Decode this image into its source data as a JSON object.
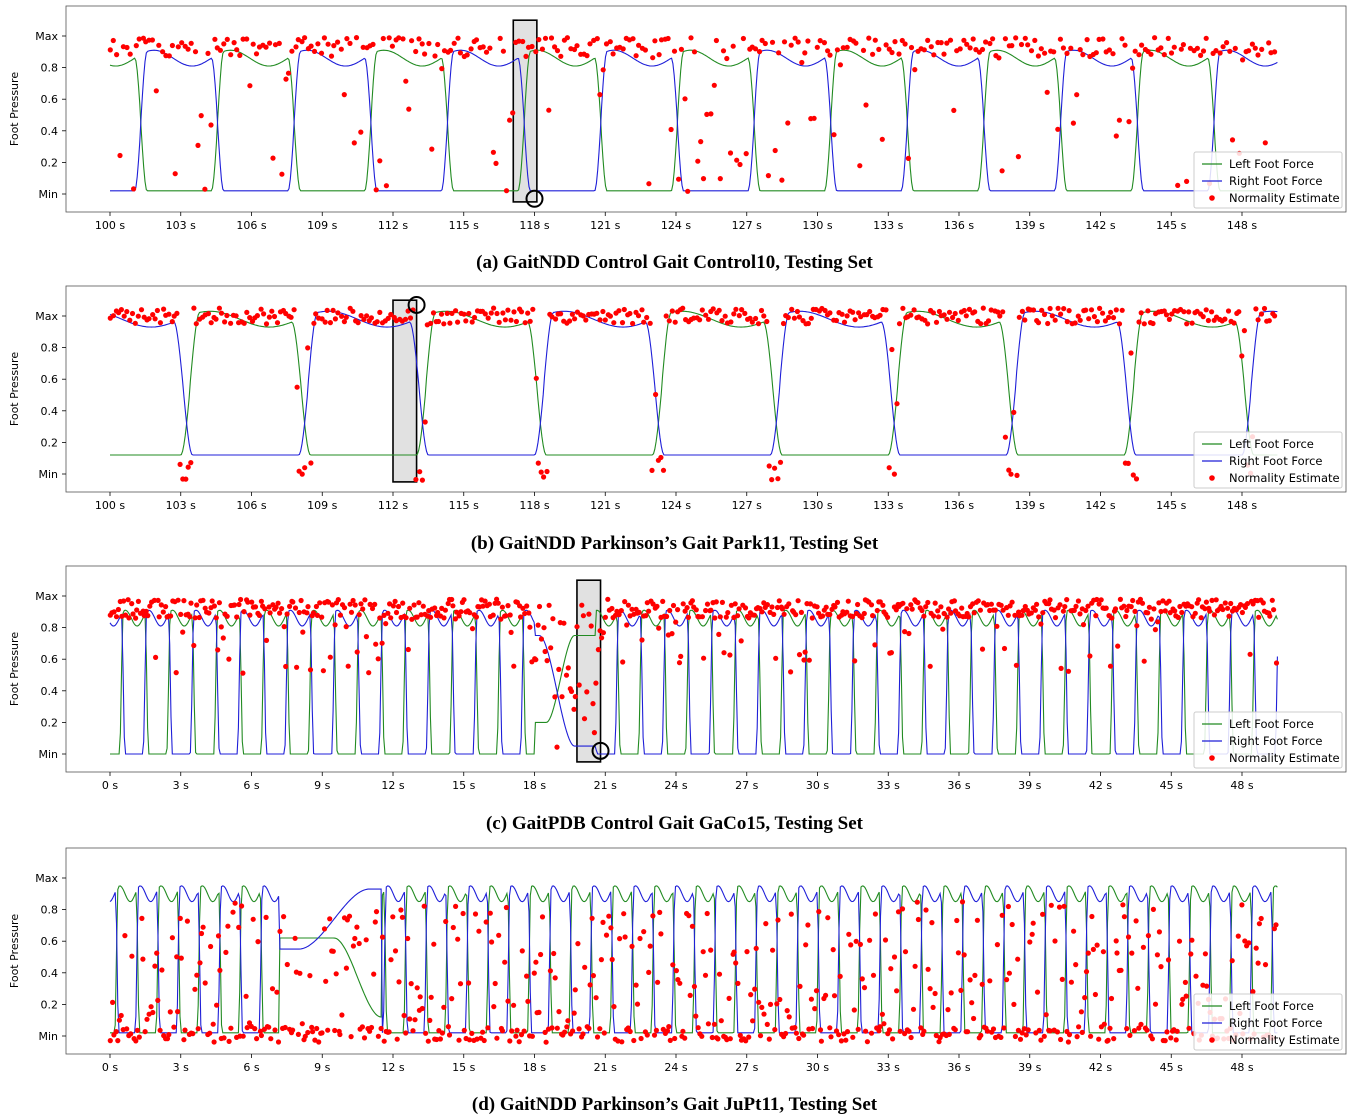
{
  "chart_data": [
    {
      "type": "line",
      "caption": "(a) GaitNDD Control Gait Control10, Testing Set",
      "ylabel": "Foot Pressure",
      "yticks": [
        "Min",
        "0.2",
        "0.4",
        "0.6",
        "0.8",
        "Max"
      ],
      "xticks": [
        "100 s",
        "103 s",
        "106 s",
        "109 s",
        "112 s",
        "115 s",
        "118 s",
        "121 s",
        "124 s",
        "127 s",
        "130 s",
        "133 s",
        "136 s",
        "139 s",
        "142 s",
        "145 s",
        "148 s"
      ],
      "xlim": [
        100,
        150
      ],
      "ylim": [
        0,
        1
      ],
      "legend": [
        "Left Foot Force",
        "Right Foot Force",
        "Normality Estimate"
      ],
      "legend_position": "bottom-right",
      "highlight": {
        "x": [
          117.1,
          118.1
        ],
        "y": [
          -0.05,
          1.1
        ],
        "marker_x": 118.0,
        "marker_y": -0.03
      },
      "gait": {
        "period": 6.5,
        "phase": 0.3,
        "right_offset": 3.25,
        "stance_fraction": 0.58,
        "high": 0.86,
        "low": 0.02
      },
      "normality": {
        "count": 360,
        "seed": 11,
        "mode": "regular"
      },
      "series": [
        {
          "name": "Left Foot Force",
          "color": "#228b22"
        },
        {
          "name": "Right Foot Force",
          "color": "#1f1fd8"
        },
        {
          "name": "Normality Estimate",
          "color": "#ff0000"
        }
      ]
    },
    {
      "type": "line",
      "caption": "(b) GaitNDD Parkinson’s Gait Park11, Testing Set",
      "ylabel": "Foot Pressure",
      "yticks": [
        "Min",
        "0.2",
        "0.4",
        "0.6",
        "0.8",
        "Max"
      ],
      "xticks": [
        "100 s",
        "103 s",
        "106 s",
        "109 s",
        "112 s",
        "115 s",
        "118 s",
        "121 s",
        "124 s",
        "127 s",
        "130 s",
        "133 s",
        "136 s",
        "139 s",
        "142 s",
        "145 s",
        "148 s"
      ],
      "xlim": [
        100,
        150
      ],
      "ylim": [
        0,
        1
      ],
      "legend": [
        "Left Foot Force",
        "Right Foot Force",
        "Normality Estimate"
      ],
      "legend_position": "bottom-right",
      "highlight": {
        "x": [
          112.0,
          113.0
        ],
        "y": [
          -0.05,
          1.1
        ],
        "marker_x": 113.0,
        "marker_y": 1.07
      },
      "gait": {
        "period": 10.0,
        "phase": 3.0,
        "right_offset": 5.0,
        "stance_fraction": 0.55,
        "high": 0.98,
        "low": 0.12
      },
      "normality": {
        "count": 420,
        "seed": 23,
        "mode": "parkinson"
      },
      "series": [
        {
          "name": "Left Foot Force",
          "color": "#228b22"
        },
        {
          "name": "Right Foot Force",
          "color": "#1f1fd8"
        },
        {
          "name": "Normality Estimate",
          "color": "#ff0000"
        }
      ]
    },
    {
      "type": "line",
      "caption": "(c) GaitPDB Control Gait GaCo15, Testing Set",
      "ylabel": "Foot Pressure",
      "yticks": [
        "Min",
        "0.2",
        "0.4",
        "0.6",
        "0.8",
        "Max"
      ],
      "xticks": [
        "0 s",
        "3 s",
        "6 s",
        "9 s",
        "12 s",
        "15 s",
        "18 s",
        "21 s",
        "24 s",
        "27 s",
        "30 s",
        "33 s",
        "36 s",
        "39 s",
        "42 s",
        "45 s",
        "48 s"
      ],
      "xlim": [
        0,
        50
      ],
      "ylim": [
        0,
        1
      ],
      "legend": [
        "Left Foot Force",
        "Right Foot Force",
        "Normality Estimate"
      ],
      "legend_position": "bottom-right",
      "highlight": {
        "x": [
          19.8,
          20.8
        ],
        "y": [
          -0.05,
          1.1
        ],
        "marker_x": 20.8,
        "marker_y": 0.02
      },
      "gait": {
        "period": 2.0,
        "phase": 0.4,
        "right_offset": 1.0,
        "stance_fraction": 0.62,
        "high": 0.86,
        "low": 0.0
      },
      "normality": {
        "count": 620,
        "seed": 37,
        "mode": "dense-high"
      },
      "series": [
        {
          "name": "Left Foot Force",
          "color": "#228b22"
        },
        {
          "name": "Right Foot Force",
          "color": "#1f1fd8"
        },
        {
          "name": "Normality Estimate",
          "color": "#ff0000"
        }
      ]
    },
    {
      "type": "line",
      "caption": "(d) GaitNDD Parkinson’s Gait JuPt11, Testing Set",
      "ylabel": "Foot Pressure",
      "yticks": [
        "Min",
        "0.2",
        "0.4",
        "0.6",
        "0.8",
        "Max"
      ],
      "xticks": [
        "0 s",
        "3 s",
        "6 s",
        "9 s",
        "12 s",
        "15 s",
        "18 s",
        "21 s",
        "24 s",
        "27 s",
        "30 s",
        "33 s",
        "36 s",
        "39 s",
        "42 s",
        "45 s",
        "48 s"
      ],
      "xlim": [
        0,
        50
      ],
      "ylim": [
        0,
        1
      ],
      "legend": [
        "Left Foot Force",
        "Right Foot Force",
        "Normality Estimate"
      ],
      "legend_position": "bottom-right",
      "highlight": null,
      "gait": {
        "period": 1.75,
        "phase": 0.2,
        "right_offset": 0.87,
        "stance_fraction": 0.6,
        "high": 0.9,
        "low": 0.02
      },
      "normality": {
        "count": 640,
        "seed": 53,
        "mode": "scattered"
      },
      "series": [
        {
          "name": "Left Foot Force",
          "color": "#228b22"
        },
        {
          "name": "Right Foot Force",
          "color": "#1f1fd8"
        },
        {
          "name": "Normality Estimate",
          "color": "#ff0000"
        }
      ]
    }
  ]
}
